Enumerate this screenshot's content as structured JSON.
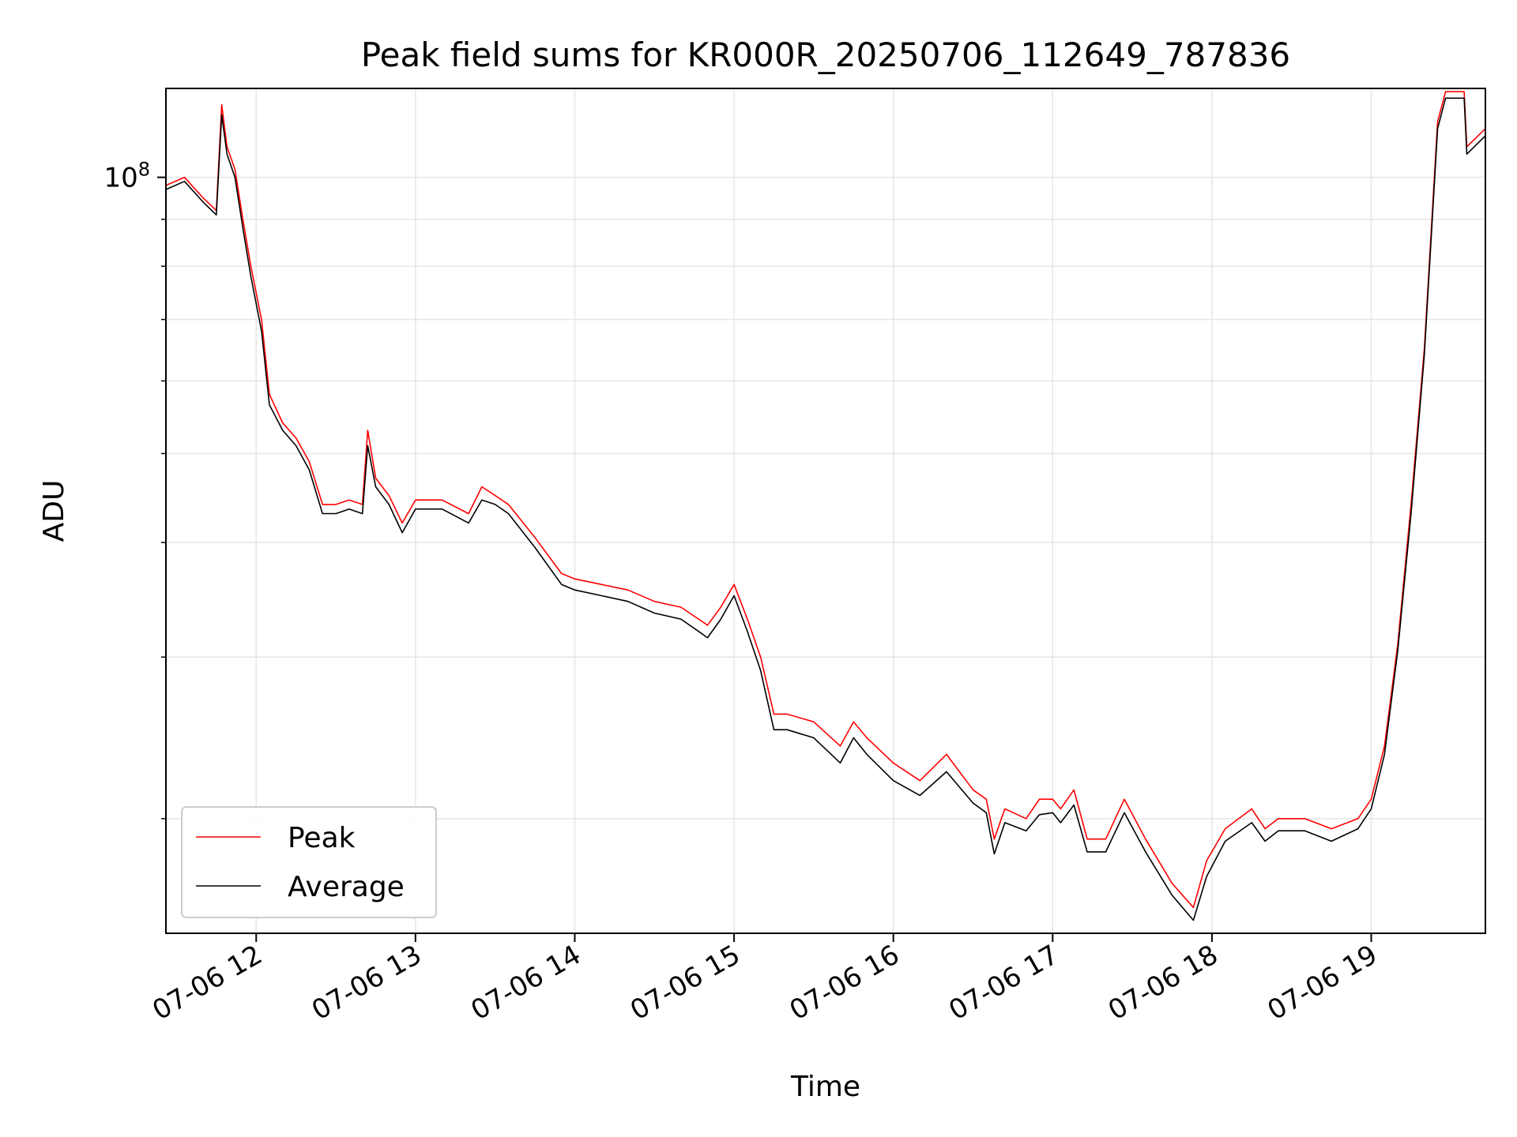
{
  "chart_data": {
    "type": "line",
    "title": "Peak field sums for KR000R_20250706_112649_787836",
    "xlabel": "Time",
    "ylabel": "ADU",
    "y_scale": "log",
    "ylim": [
      15000000,
      125000000
    ],
    "xlim": [
      "2025-07-06 11:26",
      "2025-07-06 19:43"
    ],
    "x_ticks": [
      "2025-07-06 12:00",
      "2025-07-06 13:00",
      "2025-07-06 14:00",
      "2025-07-06 15:00",
      "2025-07-06 16:00",
      "2025-07-06 17:00",
      "2025-07-06 18:00",
      "2025-07-06 19:00"
    ],
    "x_tick_labels": [
      "07-06 12",
      "07-06 13",
      "07-06 14",
      "07-06 15",
      "07-06 16",
      "07-06 17",
      "07-06 18",
      "07-06 19"
    ],
    "y_major_ticks": [
      100000000
    ],
    "y_major_tick_labels": [
      {
        "base": "10",
        "exponent": "8"
      }
    ],
    "y_minor_ticks": [
      20000000,
      30000000,
      40000000,
      50000000,
      60000000,
      70000000,
      80000000,
      90000000
    ],
    "grid": true,
    "legend_position": "lower-left",
    "series": [
      {
        "name": "Peak",
        "color": "#ff0000",
        "x": [
          "2025-07-06 11:26",
          "2025-07-06 11:33",
          "2025-07-06 11:40",
          "2025-07-06 11:45",
          "2025-07-06 11:47",
          "2025-07-06 11:49",
          "2025-07-06 11:52",
          "2025-07-06 11:55",
          "2025-07-06 11:58",
          "2025-07-06 12:02",
          "2025-07-06 12:05",
          "2025-07-06 12:10",
          "2025-07-06 12:15",
          "2025-07-06 12:20",
          "2025-07-06 12:25",
          "2025-07-06 12:30",
          "2025-07-06 12:35",
          "2025-07-06 12:40",
          "2025-07-06 12:42",
          "2025-07-06 12:45",
          "2025-07-06 12:50",
          "2025-07-06 12:55",
          "2025-07-06 13:00",
          "2025-07-06 13:10",
          "2025-07-06 13:20",
          "2025-07-06 13:25",
          "2025-07-06 13:30",
          "2025-07-06 13:35",
          "2025-07-06 13:45",
          "2025-07-06 13:55",
          "2025-07-06 14:00",
          "2025-07-06 14:10",
          "2025-07-06 14:20",
          "2025-07-06 14:30",
          "2025-07-06 14:40",
          "2025-07-06 14:50",
          "2025-07-06 14:55",
          "2025-07-06 15:00",
          "2025-07-06 15:05",
          "2025-07-06 15:10",
          "2025-07-06 15:15",
          "2025-07-06 15:20",
          "2025-07-06 15:30",
          "2025-07-06 15:40",
          "2025-07-06 15:45",
          "2025-07-06 15:50",
          "2025-07-06 16:00",
          "2025-07-06 16:10",
          "2025-07-06 16:20",
          "2025-07-06 16:30",
          "2025-07-06 16:35",
          "2025-07-06 16:38",
          "2025-07-06 16:42",
          "2025-07-06 16:50",
          "2025-07-06 16:55",
          "2025-07-06 17:00",
          "2025-07-06 17:03",
          "2025-07-06 17:08",
          "2025-07-06 17:13",
          "2025-07-06 17:20",
          "2025-07-06 17:27",
          "2025-07-06 17:35",
          "2025-07-06 17:45",
          "2025-07-06 17:53",
          "2025-07-06 17:58",
          "2025-07-06 18:05",
          "2025-07-06 18:15",
          "2025-07-06 18:20",
          "2025-07-06 18:25",
          "2025-07-06 18:35",
          "2025-07-06 18:45",
          "2025-07-06 18:55",
          "2025-07-06 19:00",
          "2025-07-06 19:05",
          "2025-07-06 19:10",
          "2025-07-06 19:15",
          "2025-07-06 19:20",
          "2025-07-06 19:25",
          "2025-07-06 19:28",
          "2025-07-06 19:35",
          "2025-07-06 19:36",
          "2025-07-06 19:43"
        ],
        "values": [
          98000000,
          100000000,
          95000000,
          92000000,
          120000000,
          108000000,
          102000000,
          90000000,
          80000000,
          70000000,
          58000000,
          54000000,
          52000000,
          49000000,
          44000000,
          44000000,
          44500000,
          44000000,
          53000000,
          47000000,
          45000000,
          42000000,
          44500000,
          44500000,
          43000000,
          46000000,
          45000000,
          44000000,
          40500000,
          37000000,
          36500000,
          36000000,
          35500000,
          34500000,
          34000000,
          32500000,
          34000000,
          36000000,
          33000000,
          30000000,
          26000000,
          26000000,
          25500000,
          24000000,
          25500000,
          24500000,
          23000000,
          22000000,
          23500000,
          21500000,
          21000000,
          19000000,
          20500000,
          20000000,
          21000000,
          21000000,
          20500000,
          21500000,
          19000000,
          19000000,
          21000000,
          19000000,
          17000000,
          16000000,
          18000000,
          19500000,
          20500000,
          19500000,
          20000000,
          20000000,
          19500000,
          20000000,
          21000000,
          24000000,
          31000000,
          44000000,
          65000000,
          115000000,
          124000000,
          124000000,
          108000000,
          113000000
        ]
      },
      {
        "name": "Average",
        "color": "#000000",
        "x": [
          "2025-07-06 11:26",
          "2025-07-06 11:33",
          "2025-07-06 11:40",
          "2025-07-06 11:45",
          "2025-07-06 11:47",
          "2025-07-06 11:49",
          "2025-07-06 11:52",
          "2025-07-06 11:55",
          "2025-07-06 11:58",
          "2025-07-06 12:02",
          "2025-07-06 12:05",
          "2025-07-06 12:10",
          "2025-07-06 12:15",
          "2025-07-06 12:20",
          "2025-07-06 12:25",
          "2025-07-06 12:30",
          "2025-07-06 12:35",
          "2025-07-06 12:40",
          "2025-07-06 12:42",
          "2025-07-06 12:45",
          "2025-07-06 12:50",
          "2025-07-06 12:55",
          "2025-07-06 13:00",
          "2025-07-06 13:10",
          "2025-07-06 13:20",
          "2025-07-06 13:25",
          "2025-07-06 13:30",
          "2025-07-06 13:35",
          "2025-07-06 13:45",
          "2025-07-06 13:55",
          "2025-07-06 14:00",
          "2025-07-06 14:10",
          "2025-07-06 14:20",
          "2025-07-06 14:30",
          "2025-07-06 14:40",
          "2025-07-06 14:50",
          "2025-07-06 14:55",
          "2025-07-06 15:00",
          "2025-07-06 15:05",
          "2025-07-06 15:10",
          "2025-07-06 15:15",
          "2025-07-06 15:20",
          "2025-07-06 15:30",
          "2025-07-06 15:40",
          "2025-07-06 15:45",
          "2025-07-06 15:50",
          "2025-07-06 16:00",
          "2025-07-06 16:10",
          "2025-07-06 16:20",
          "2025-07-06 16:30",
          "2025-07-06 16:35",
          "2025-07-06 16:38",
          "2025-07-06 16:42",
          "2025-07-06 16:50",
          "2025-07-06 16:55",
          "2025-07-06 17:00",
          "2025-07-06 17:03",
          "2025-07-06 17:08",
          "2025-07-06 17:13",
          "2025-07-06 17:20",
          "2025-07-06 17:27",
          "2025-07-06 17:35",
          "2025-07-06 17:45",
          "2025-07-06 17:53",
          "2025-07-06 17:58",
          "2025-07-06 18:05",
          "2025-07-06 18:15",
          "2025-07-06 18:20",
          "2025-07-06 18:25",
          "2025-07-06 18:35",
          "2025-07-06 18:45",
          "2025-07-06 18:55",
          "2025-07-06 19:00",
          "2025-07-06 19:05",
          "2025-07-06 19:10",
          "2025-07-06 19:15",
          "2025-07-06 19:20",
          "2025-07-06 19:25",
          "2025-07-06 19:28",
          "2025-07-06 19:35",
          "2025-07-06 19:36",
          "2025-07-06 19:43"
        ],
        "values": [
          97000000,
          99000000,
          94000000,
          91000000,
          117000000,
          106000000,
          100000000,
          88000000,
          78000000,
          68000000,
          56500000,
          53000000,
          51000000,
          48000000,
          43000000,
          43000000,
          43500000,
          43000000,
          51000000,
          46000000,
          44000000,
          41000000,
          43500000,
          43500000,
          42000000,
          44500000,
          44000000,
          43000000,
          39500000,
          36000000,
          35500000,
          35000000,
          34500000,
          33500000,
          33000000,
          31500000,
          33000000,
          35000000,
          32000000,
          29000000,
          25000000,
          25000000,
          24500000,
          23000000,
          24500000,
          23500000,
          22000000,
          21200000,
          22500000,
          20800000,
          20300000,
          18300000,
          19800000,
          19400000,
          20200000,
          20300000,
          19800000,
          20700000,
          18400000,
          18400000,
          20300000,
          18400000,
          16500000,
          15500000,
          17300000,
          18900000,
          19800000,
          18900000,
          19400000,
          19400000,
          18900000,
          19500000,
          20500000,
          23500000,
          30500000,
          43000000,
          64000000,
          113000000,
          122000000,
          122000000,
          106000000,
          111000000
        ]
      }
    ]
  }
}
